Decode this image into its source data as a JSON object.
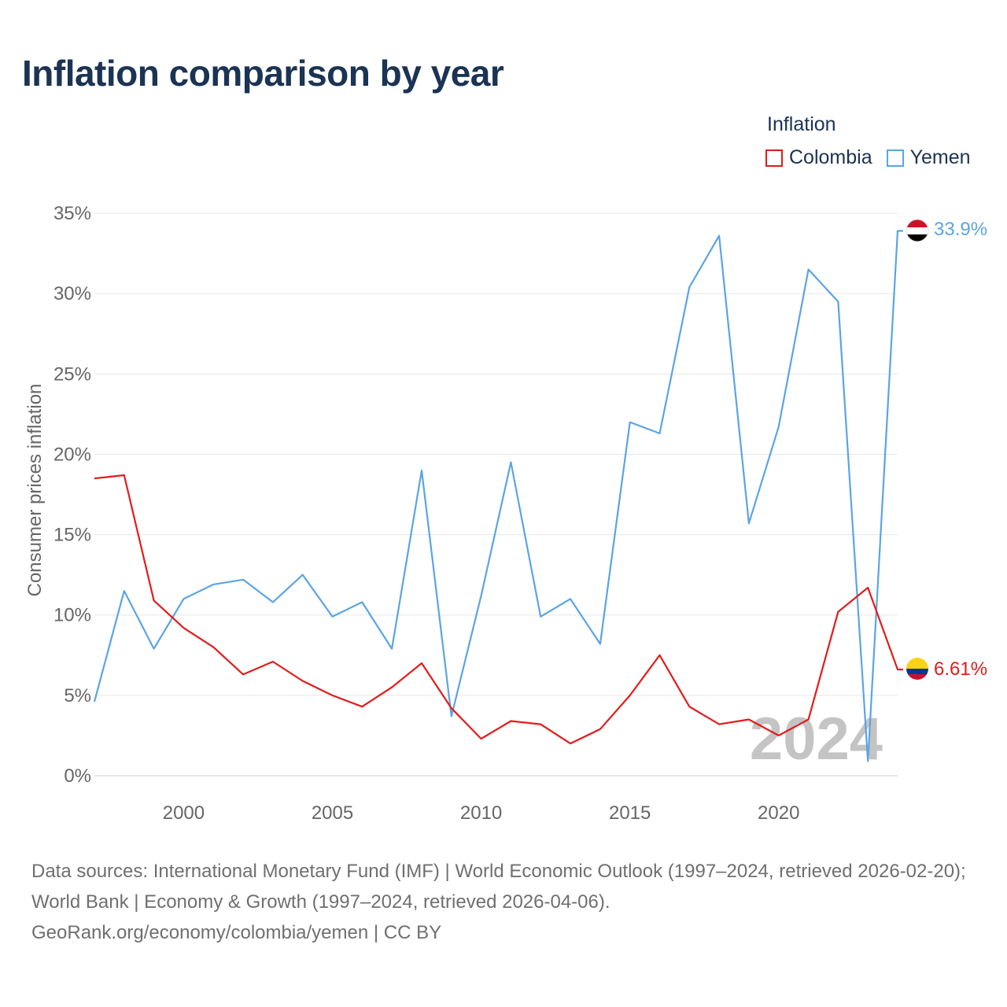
{
  "title": "Inflation comparison by year",
  "legend": {
    "title": "Inflation",
    "items": [
      {
        "label": "Colombia",
        "color": "#e31b1b"
      },
      {
        "label": "Yemen",
        "color": "#5ba4e5"
      }
    ]
  },
  "watermark_year": "2024",
  "footer": {
    "sources": "Data sources: International Monetary Fund (IMF) | World Economic Outlook (1997–2024, retrieved 2026-02-20); World Bank | Economy & Growth (1997–2024, retrieved 2026-04-06).",
    "credit": "GeoRank.org/economy/colombia/yemen | CC BY"
  },
  "chart_data": {
    "type": "line",
    "title": "Inflation comparison by year",
    "xlabel": "",
    "ylabel": "Consumer prices inflation",
    "x": [
      1997,
      1998,
      1999,
      2000,
      2001,
      2002,
      2003,
      2004,
      2005,
      2006,
      2007,
      2008,
      2009,
      2010,
      2011,
      2012,
      2013,
      2014,
      2015,
      2016,
      2017,
      2018,
      2019,
      2020,
      2021,
      2022,
      2023,
      2024
    ],
    "xlim": [
      1997,
      2024
    ],
    "ylim": [
      0,
      35
    ],
    "x_ticks": [
      2000,
      2005,
      2010,
      2015,
      2020
    ],
    "x_tick_labels": [
      "2000",
      "2005",
      "2010",
      "2015",
      "2020"
    ],
    "y_ticks": [
      0,
      5,
      10,
      15,
      20,
      25,
      30,
      35
    ],
    "y_tick_labels": [
      "0%",
      "5%",
      "10%",
      "15%",
      "20%",
      "25%",
      "30%",
      "35%"
    ],
    "grid": true,
    "series": [
      {
        "name": "Colombia",
        "color": "#e31b1b",
        "values": [
          18.5,
          18.7,
          10.9,
          9.2,
          8.0,
          6.3,
          7.1,
          5.9,
          5.0,
          4.3,
          5.5,
          7.0,
          4.2,
          2.3,
          3.4,
          3.2,
          2.0,
          2.9,
          5.0,
          7.5,
          4.3,
          3.2,
          3.5,
          2.5,
          3.5,
          10.2,
          11.7,
          6.61
        ],
        "end_label": "6.61%"
      },
      {
        "name": "Yemen",
        "color": "#5ba4e5",
        "values": [
          4.6,
          11.5,
          7.9,
          11.0,
          11.9,
          12.2,
          10.8,
          12.5,
          9.9,
          10.8,
          7.9,
          19.0,
          3.7,
          11.2,
          19.5,
          9.9,
          11.0,
          8.2,
          22.0,
          21.3,
          30.4,
          33.6,
          15.7,
          21.7,
          31.5,
          29.5,
          0.9,
          33.9
        ],
        "end_label": "33.9%"
      }
    ]
  }
}
